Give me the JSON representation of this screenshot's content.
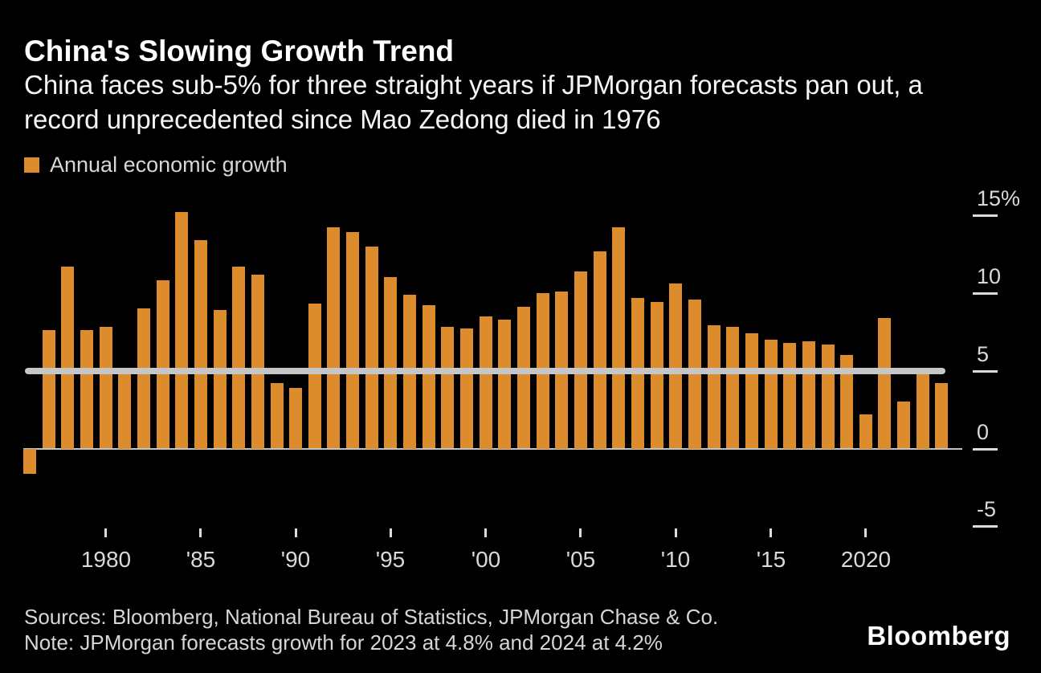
{
  "header": {
    "title": "China's Slowing Growth Trend",
    "subtitle_line1": "China faces sub-5% for three straight years if JPMorgan forecasts pan out, a",
    "subtitle_line2": "record unprecedented since Mao Zedong died in 1976"
  },
  "legend": {
    "label": "Annual economic growth"
  },
  "chart_data": {
    "type": "bar",
    "title": "China's Slowing Growth Trend",
    "series_name": "Annual economic growth",
    "unit": "percent",
    "years": [
      1976,
      1977,
      1978,
      1979,
      1980,
      1981,
      1982,
      1983,
      1984,
      1985,
      1986,
      1987,
      1988,
      1989,
      1990,
      1991,
      1992,
      1993,
      1994,
      1995,
      1996,
      1997,
      1998,
      1999,
      2000,
      2001,
      2002,
      2003,
      2004,
      2005,
      2006,
      2007,
      2008,
      2009,
      2010,
      2011,
      2012,
      2013,
      2014,
      2015,
      2016,
      2017,
      2018,
      2019,
      2020,
      2021,
      2022,
      2023,
      2024
    ],
    "values": [
      -1.6,
      7.6,
      11.7,
      7.6,
      7.8,
      4.8,
      9.0,
      10.8,
      15.2,
      13.4,
      8.9,
      11.7,
      11.2,
      4.2,
      3.9,
      9.3,
      14.2,
      13.9,
      13.0,
      11.0,
      9.9,
      9.2,
      7.8,
      7.7,
      8.5,
      8.3,
      9.1,
      10.0,
      10.1,
      11.4,
      12.7,
      14.2,
      9.7,
      9.4,
      10.6,
      9.6,
      7.9,
      7.8,
      7.4,
      7.0,
      6.8,
      6.9,
      6.7,
      6.0,
      2.2,
      8.4,
      3.0,
      4.8,
      4.2
    ],
    "ylim": [
      -5,
      15
    ],
    "y_ticks": [
      {
        "label": "15%",
        "value": 15
      },
      {
        "label": "10",
        "value": 10
      },
      {
        "label": "5",
        "value": 5
      },
      {
        "label": "0",
        "value": 0
      },
      {
        "label": "-5",
        "value": -5
      }
    ],
    "x_ticks": [
      {
        "label": "1980",
        "year": 1980
      },
      {
        "label": "'85",
        "year": 1985
      },
      {
        "label": "'90",
        "year": 1990
      },
      {
        "label": "'95",
        "year": 1995
      },
      {
        "label": "'00",
        "year": 2000
      },
      {
        "label": "'05",
        "year": 2005
      },
      {
        "label": "'10",
        "year": 2010
      },
      {
        "label": "'15",
        "year": 2015
      },
      {
        "label": "2020",
        "year": 2020
      }
    ],
    "threshold_line": {
      "value": 5
    },
    "grid": false,
    "legend_position": "top-left",
    "axis_side": "right",
    "bar_color": "#dc8c2d",
    "threshold_color": "#c6c6c6",
    "zero_line_color": "#c2c2c2"
  },
  "footer": {
    "sources": "Sources: Bloomberg, National Bureau of Statistics, JPMorgan Chase & Co.",
    "note": "Note: JPMorgan forecasts growth for 2023 at 4.8% and 2024 at 4.2%",
    "brand": "Bloomberg"
  }
}
